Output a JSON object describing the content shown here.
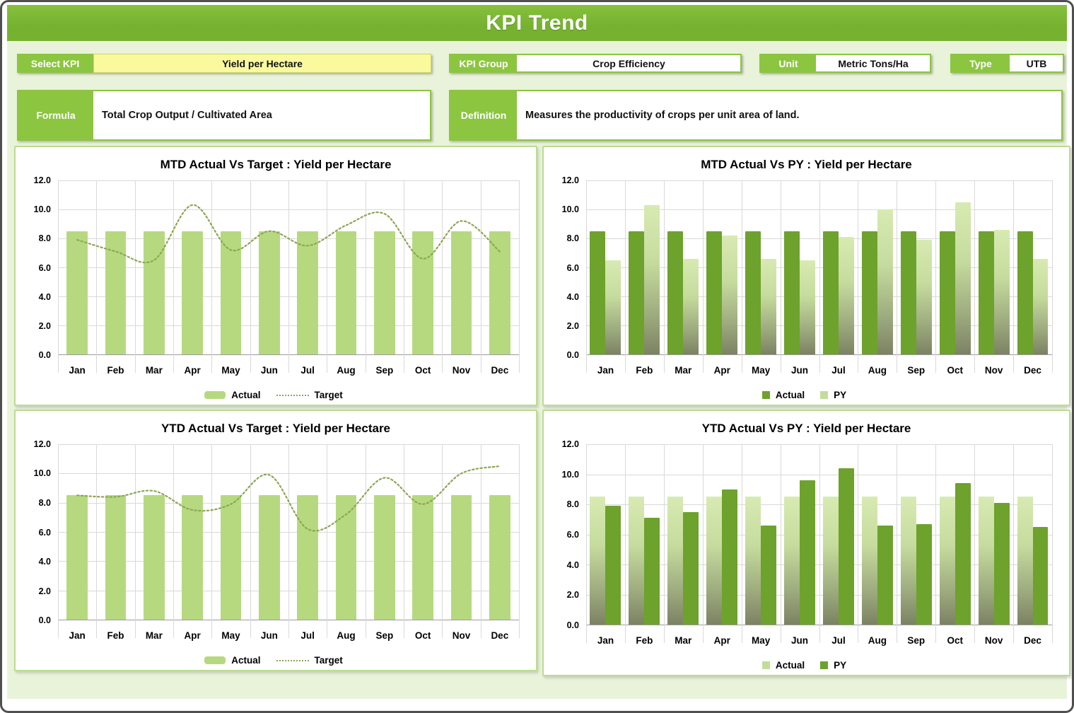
{
  "page": {
    "title": "KPI Trend"
  },
  "controls": {
    "select_kpi": {
      "label": "Select KPI",
      "value": "Yield per Hectare"
    },
    "kpi_group": {
      "label": "KPI Group",
      "value": "Crop Efficiency"
    },
    "unit": {
      "label": "Unit",
      "value": "Metric Tons/Ha"
    },
    "type": {
      "label": "Type",
      "value": "UTB"
    },
    "formula": {
      "label": "Formula",
      "value": "Total Crop Output / Cultivated Area"
    },
    "definition": {
      "label": "Definition",
      "value": "Measures the productivity of crops per unit area of land."
    }
  },
  "colors": {
    "header_green": "#76b22f",
    "header_green_light": "#86c13d",
    "label_green": "#8cc540",
    "content_bg": "#e9f3da",
    "panel_border": "#bcdb90",
    "yellow": "#fbf99e",
    "bar_light": "#b6d980",
    "bar_dark": "#6da22c",
    "gradient_top": "#d8eab2",
    "gradient_bottom": "#7c8263",
    "target_line": "#8ca653",
    "grid": "#d9d9d9"
  },
  "chart_data": [
    {
      "type": "bar",
      "title": "MTD Actual Vs Target : Yield per Hectare",
      "categories": [
        "Jan",
        "Feb",
        "Mar",
        "Apr",
        "May",
        "Jun",
        "Jul",
        "Aug",
        "Sep",
        "Oct",
        "Nov",
        "Dec"
      ],
      "series": [
        {
          "name": "Actual",
          "style": "bar-light",
          "values": [
            8.5,
            8.5,
            8.5,
            8.5,
            8.5,
            8.5,
            8.5,
            8.5,
            8.5,
            8.5,
            8.5,
            8.5
          ]
        },
        {
          "name": "Target",
          "style": "line-dotted",
          "values": [
            7.9,
            7.1,
            6.5,
            10.3,
            7.2,
            8.5,
            7.5,
            8.9,
            9.7,
            6.6,
            9.2,
            7.1
          ]
        }
      ],
      "xlabel": "",
      "ylabel": "",
      "ylim": [
        0,
        12
      ],
      "ytick": 2,
      "grid": true,
      "legend_position": "bottom"
    },
    {
      "type": "bar",
      "title": "MTD Actual Vs PY : Yield per Hectare",
      "categories": [
        "Jan",
        "Feb",
        "Mar",
        "Apr",
        "May",
        "Jun",
        "Jul",
        "Aug",
        "Sep",
        "Oct",
        "Nov",
        "Dec"
      ],
      "series": [
        {
          "name": "Actual",
          "style": "bar-dark",
          "values": [
            8.5,
            8.5,
            8.5,
            8.5,
            8.5,
            8.5,
            8.5,
            8.5,
            8.5,
            8.5,
            8.5,
            8.5
          ]
        },
        {
          "name": "PY",
          "style": "bar-gradient",
          "values": [
            6.5,
            10.3,
            6.6,
            8.2,
            6.6,
            6.5,
            8.1,
            10.0,
            7.9,
            10.5,
            8.6,
            6.6
          ]
        }
      ],
      "xlabel": "",
      "ylabel": "",
      "ylim": [
        0,
        12
      ],
      "ytick": 2,
      "grid": true,
      "legend_position": "bottom"
    },
    {
      "type": "bar",
      "title": "YTD Actual Vs Target : Yield per Hectare",
      "categories": [
        "Jan",
        "Feb",
        "Mar",
        "Apr",
        "May",
        "Jun",
        "Jul",
        "Aug",
        "Sep",
        "Oct",
        "Nov",
        "Dec"
      ],
      "series": [
        {
          "name": "Actual",
          "style": "bar-light",
          "values": [
            8.5,
            8.5,
            8.5,
            8.5,
            8.5,
            8.5,
            8.5,
            8.5,
            8.5,
            8.5,
            8.5,
            8.5
          ]
        },
        {
          "name": "Target",
          "style": "line-dotted",
          "values": [
            8.5,
            8.4,
            8.8,
            7.5,
            7.9,
            9.9,
            6.2,
            7.2,
            9.7,
            7.9,
            10.0,
            10.5
          ]
        }
      ],
      "xlabel": "",
      "ylabel": "",
      "ylim": [
        0,
        12
      ],
      "ytick": 2,
      "grid": true,
      "legend_position": "bottom"
    },
    {
      "type": "bar",
      "title": "YTD Actual Vs PY : Yield per Hectare",
      "categories": [
        "Jan",
        "Feb",
        "Mar",
        "Apr",
        "May",
        "Jun",
        "Jul",
        "Aug",
        "Sep",
        "Oct",
        "Nov",
        "Dec"
      ],
      "series": [
        {
          "name": "Actual",
          "style": "bar-gradient",
          "values": [
            8.5,
            8.5,
            8.5,
            8.5,
            8.5,
            8.5,
            8.5,
            8.5,
            8.5,
            8.5,
            8.5,
            8.5
          ]
        },
        {
          "name": "PY",
          "style": "bar-dark",
          "values": [
            7.9,
            7.1,
            7.5,
            9.0,
            6.6,
            9.6,
            10.4,
            6.6,
            6.7,
            9.4,
            8.1,
            6.5
          ]
        }
      ],
      "xlabel": "",
      "ylabel": "",
      "ylim": [
        0,
        12
      ],
      "ytick": 2,
      "grid": true,
      "legend_position": "bottom"
    }
  ]
}
